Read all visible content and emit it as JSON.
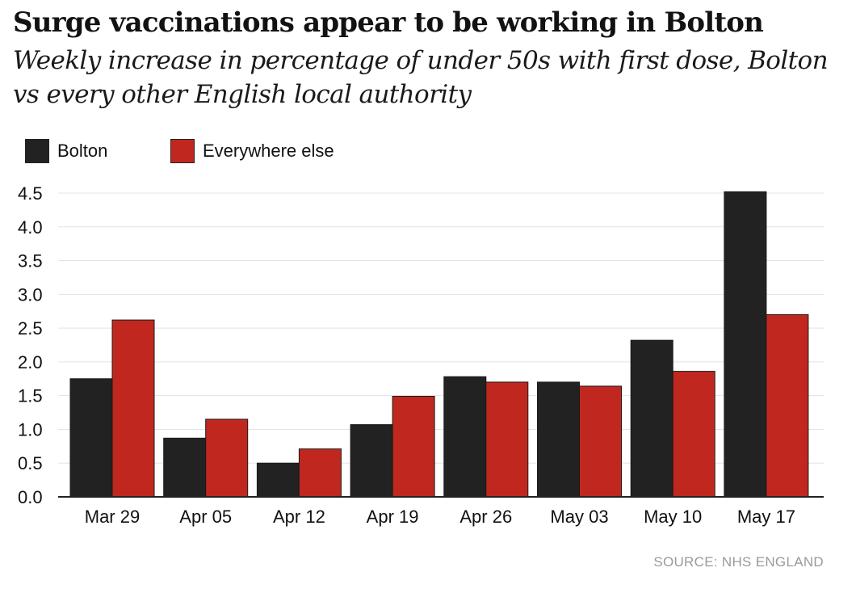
{
  "title": "Surge vaccinations appear to be working in Bolton",
  "subtitle": "Weekly increase in percentage of under 50s with first dose, Bolton vs every other English local authority",
  "source": "SOURCE: NHS ENGLAND",
  "colors": {
    "bolton": "#222222",
    "everywhere_else": "#c0281f",
    "grid": "#e3e3e3",
    "axis": "#222222"
  },
  "chart_data": {
    "type": "bar",
    "categories": [
      "Mar 29",
      "Apr 05",
      "Apr 12",
      "Apr 19",
      "Apr 26",
      "May 03",
      "May 10",
      "May 17"
    ],
    "series": [
      {
        "name": "Bolton",
        "values": [
          1.75,
          0.87,
          0.5,
          1.07,
          1.78,
          1.7,
          2.32,
          4.52
        ]
      },
      {
        "name": "Everywhere else",
        "values": [
          2.62,
          1.15,
          0.71,
          1.49,
          1.7,
          1.64,
          1.86,
          2.7
        ]
      }
    ],
    "yticks": [
      "0.0",
      "0.5",
      "1.0",
      "1.5",
      "2.0",
      "2.5",
      "3.0",
      "3.5",
      "4.0",
      "4.5"
    ],
    "ylim": [
      0,
      4.5
    ],
    "grid": true,
    "legend_position": "top-left"
  }
}
